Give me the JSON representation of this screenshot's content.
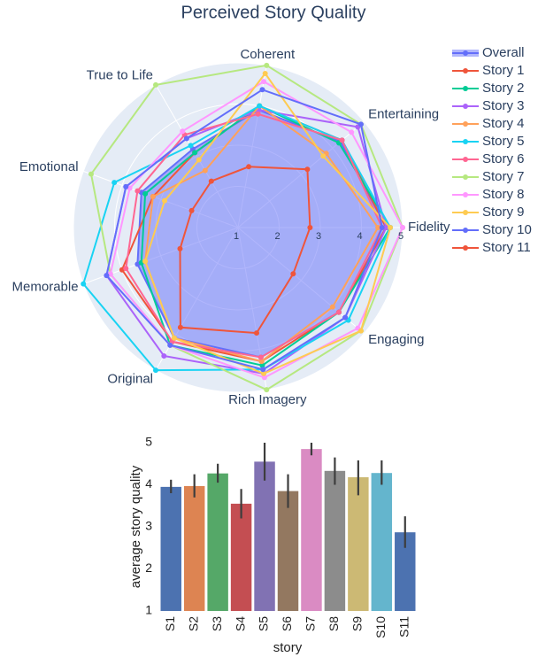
{
  "chart_data": [
    {
      "type": "radar",
      "title": "Perceived Story Quality",
      "categories": [
        "Fidelity",
        "Entertaining",
        "Coherent",
        "True to Life",
        "Emotional",
        "Memorable",
        "Original",
        "Rich Imagery",
        "Engaging"
      ],
      "ylim": [
        1,
        5
      ],
      "yticks": [
        1,
        2,
        3,
        4,
        5
      ],
      "grid": true,
      "series": [
        {
          "name": "Overall",
          "color": "#636efa",
          "fill": true,
          "values": [
            4.6,
            4.25,
            3.9,
            3.2,
            3.5,
            3.6,
            4.1,
            4.2,
            4.2
          ]
        },
        {
          "name": "Story 1",
          "color": "#ef553b",
          "values": [
            4.6,
            4.3,
            4.0,
            3.1,
            3.2,
            4.0,
            4.2,
            4.3,
            4.2
          ]
        },
        {
          "name": "Story 2",
          "color": "#00cc96",
          "values": [
            4.7,
            4.2,
            4.0,
            3.1,
            3.4,
            3.5,
            4.3,
            4.4,
            4.2
          ]
        },
        {
          "name": "Story 3",
          "color": "#ab63fa",
          "values": [
            4.6,
            4.8,
            3.9,
            3.5,
            3.9,
            4.4,
            4.6,
            4.6,
            4.4
          ]
        },
        {
          "name": "Story 4",
          "color": "#ffa15a",
          "values": [
            4.4,
            3.8,
            4.0,
            2.6,
            3.2,
            3.4,
            4.1,
            4.3,
            4.0
          ]
        },
        {
          "name": "Story 5",
          "color": "#19d3f3",
          "values": [
            4.7,
            4.3,
            4.0,
            3.3,
            4.2,
            5.0,
            5.0,
            4.5,
            4.5
          ]
        },
        {
          "name": "Story 6",
          "color": "#ff6692",
          "values": [
            4.5,
            4.3,
            3.8,
            3.6,
            3.6,
            3.9,
            4.2,
            4.2,
            4.2
          ]
        },
        {
          "name": "Story 7",
          "color": "#b6e880",
          "values": [
            5.0,
            4.9,
            5.0,
            5.0,
            4.8,
            4.3,
            4.3,
            5.0,
            4.9
          ]
        },
        {
          "name": "Story 8",
          "color": "#ff97ff",
          "values": [
            5.0,
            4.6,
            4.6,
            3.7,
            3.8,
            4.3,
            4.3,
            4.7,
            4.8
          ]
        },
        {
          "name": "Story 9",
          "color": "#fecb52",
          "values": [
            4.7,
            3.7,
            4.8,
            2.9,
            2.9,
            3.4,
            4.1,
            4.6,
            4.9
          ]
        },
        {
          "name": "Story 10",
          "color": "#636efa",
          "values": [
            4.5,
            4.9,
            4.4,
            3.5,
            3.9,
            4.4,
            4.3,
            4.5,
            4.4
          ]
        },
        {
          "name": "Story 11",
          "color": "#ef553b",
          "values": [
            2.75,
            3.2,
            2.5,
            2.3,
            2.2,
            2.5,
            3.8,
            3.6,
            2.75
          ]
        }
      ]
    },
    {
      "type": "bar",
      "x_label": "story",
      "y_label": "average story quality",
      "categories": [
        "S1",
        "S2",
        "S3",
        "S4",
        "S5",
        "S6",
        "S7",
        "S8",
        "S9",
        "S10",
        "S11"
      ],
      "values": [
        3.95,
        3.97,
        4.27,
        3.55,
        4.55,
        3.85,
        4.85,
        4.33,
        4.18,
        4.28,
        2.87
      ],
      "ci_low": [
        3.8,
        3.7,
        4.05,
        3.2,
        4.1,
        3.45,
        4.7,
        4.0,
        3.75,
        4.0,
        2.5
      ],
      "ci_high": [
        4.12,
        4.25,
        4.5,
        3.9,
        5.0,
        4.25,
        5.0,
        4.65,
        4.58,
        4.58,
        3.25
      ],
      "colors": [
        "#4c72b0",
        "#dd8452",
        "#55a868",
        "#c44e52",
        "#8172b3",
        "#937860",
        "#da8bc3",
        "#8c8c8c",
        "#ccb974",
        "#64b5cd",
        "#4c72b0"
      ],
      "ylim": [
        1,
        5
      ],
      "yticks": [
        1,
        2,
        3,
        4,
        5
      ]
    }
  ]
}
